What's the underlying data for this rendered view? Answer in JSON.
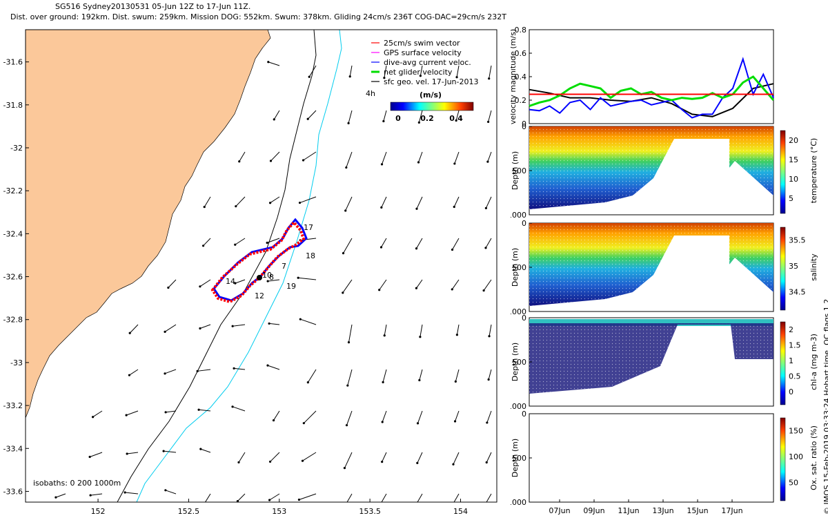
{
  "header": {
    "line1": "SG516 Sydney20130531 05-Jun 12Z to 17-Jun 11Z.",
    "line2": "Dist. over ground: 192km. Dist. swum: 259km. Mission DOG: 552km. Swum: 378km. Gliding 24cm/s 236T COG-DAC=29cm/s 232T"
  },
  "footer_vertical": "© IMOS 15-Feb-2019 03:33:24 Hobart time. QC flags 1  2",
  "map": {
    "x_ticks": [
      "152",
      "152.5",
      "153",
      "153.5",
      "154"
    ],
    "y_ticks": [
      "-31.6",
      "-31.8",
      "-32",
      "-32.2",
      "-32.4",
      "-32.6",
      "-32.8",
      "-33",
      "-33.2",
      "-33.4",
      "-33.6"
    ],
    "legend": [
      {
        "label": "25cm/s swim vector",
        "color": "#ff0000"
      },
      {
        "label": "GPS surface velocity",
        "color": "#ff00ff"
      },
      {
        "label": "dive-avg current veloc.",
        "color": "#0000ff"
      },
      {
        "label": "net glider velocity",
        "color": "#00dd00"
      },
      {
        "label": "sfc geo. vel. 17-Jun-2013",
        "color": "#000000"
      }
    ],
    "time_label": "4h",
    "colorbar_title": "(m/s)",
    "colorbar_ticks": [
      "0",
      "0.2",
      "0.4"
    ],
    "isobaths_label": "isobaths: 0   200  1000m",
    "day_labels": [
      "17",
      "18",
      "7",
      "8",
      "10",
      "19",
      "14",
      "12"
    ],
    "colors": {
      "land": "#fbc89a",
      "isobath_200": "#000000",
      "isobath_1000": "#00ccee"
    }
  },
  "velocity": {
    "ylabel": "velocity magnitude (m/s)",
    "y_ticks": [
      "0",
      "0.2",
      "0.4",
      "0.6",
      "0.8"
    ]
  },
  "panels": [
    {
      "ylabel": "Depth (m)",
      "y_ticks": [
        "0",
        "500",
        "1000"
      ],
      "cbar_label": "temperature (°C)",
      "cbar_ticks": [
        "5",
        "10",
        "15",
        "20"
      ]
    },
    {
      "ylabel": "Depth (m)",
      "y_ticks": [
        "0",
        "500",
        "1000"
      ],
      "cbar_label": "salinity",
      "cbar_ticks": [
        "34.5",
        "35",
        "35.5"
      ]
    },
    {
      "ylabel": "Depth (m)",
      "y_ticks": [
        "0",
        "500",
        "1000"
      ],
      "cbar_label": "chl-a (mg m-3)",
      "cbar_ticks": [
        "0",
        "0.5",
        "1",
        "1.5",
        "2"
      ]
    },
    {
      "ylabel": "Depth (m)",
      "y_ticks": [
        "0",
        "500",
        "1000"
      ],
      "cbar_label": "Ox. sat. ratio (%)",
      "cbar_ticks": [
        "50",
        "100",
        "150"
      ]
    }
  ],
  "x_dates": [
    "07Jun",
    "09Jun",
    "11Jun",
    "13Jun",
    "15Jun",
    "17Jun"
  ],
  "chart_data": [
    {
      "type": "scatter",
      "title": "SG516 Sydney20130531 05-Jun 12Z to 17-Jun 11Z.",
      "xlim": [
        151.6,
        154.2
      ],
      "ylim": [
        -33.65,
        -31.45
      ],
      "track": [
        [
          152.62,
          -32.65
        ],
        [
          152.8,
          -32.47
        ],
        [
          152.95,
          -32.44
        ],
        [
          153.07,
          -32.43
        ],
        [
          153.1,
          -32.34
        ],
        [
          153.12,
          -32.42
        ],
        [
          153.0,
          -32.52
        ],
        [
          152.88,
          -32.6
        ],
        [
          152.8,
          -32.68
        ],
        [
          152.62,
          -32.65
        ]
      ]
    },
    {
      "type": "line",
      "xlabel": "",
      "ylabel": "velocity magnitude (m/s)",
      "ylim": [
        0,
        0.8
      ],
      "series": [
        {
          "x": [
            0,
            1,
            2,
            3,
            4,
            5,
            6,
            7,
            8,
            9,
            10,
            11,
            12
          ],
          "values": [
            0.29,
            0.26,
            0.22,
            0.22,
            0.2,
            0.19,
            0.22,
            0.17,
            0.08,
            0.06,
            0.13,
            0.3,
            0.34
          ]
        },
        {
          "x": [
            0,
            0.5,
            1,
            1.5,
            2,
            2.5,
            3,
            3.5,
            4,
            4.5,
            5,
            5.5,
            6,
            6.5,
            7,
            7.5,
            8,
            8.5,
            9,
            9.5,
            10,
            10.5,
            11,
            11.5,
            12
          ],
          "values": [
            0.12,
            0.11,
            0.15,
            0.09,
            0.18,
            0.2,
            0.12,
            0.22,
            0.15,
            0.17,
            0.19,
            0.2,
            0.16,
            0.18,
            0.2,
            0.12,
            0.05,
            0.08,
            0.08,
            0.22,
            0.3,
            0.55,
            0.25,
            0.42,
            0.22
          ]
        },
        {
          "x": [
            0,
            0.5,
            1,
            1.5,
            2,
            2.5,
            3,
            3.5,
            4,
            4.5,
            5,
            5.5,
            6,
            6.5,
            7,
            7.5,
            8,
            8.5,
            9,
            9.5,
            10,
            10.5,
            11,
            11.5,
            12
          ],
          "values": [
            0.15,
            0.18,
            0.2,
            0.24,
            0.3,
            0.34,
            0.32,
            0.3,
            0.22,
            0.28,
            0.3,
            0.25,
            0.27,
            0.22,
            0.2,
            0.22,
            0.21,
            0.22,
            0.26,
            0.22,
            0.25,
            0.35,
            0.4,
            0.3,
            0.2
          ]
        },
        {
          "x": [
            0,
            12
          ],
          "values": [
            0.25,
            0.25
          ]
        }
      ]
    }
  ]
}
